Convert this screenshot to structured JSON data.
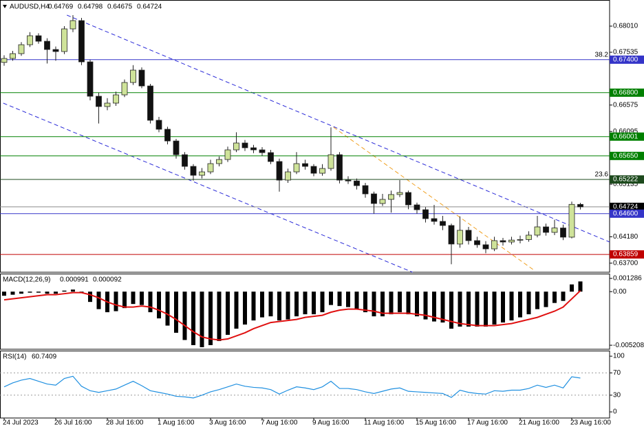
{
  "chart_data": [
    {
      "type": "candlestick",
      "title": "AUDUSD,H4",
      "categories": [
        "24 Jul 2023",
        null,
        null,
        null,
        null,
        null,
        "26 Jul 16:00",
        null,
        null,
        null,
        null,
        null,
        "28 Jul 16:00",
        null,
        null,
        null,
        null,
        null,
        "1 Aug 16:00",
        null,
        null,
        null,
        null,
        null,
        "3 Aug 16:00",
        null,
        null,
        null,
        null,
        null,
        "7 Aug 16:00",
        null,
        null,
        null,
        null,
        null,
        "9 Aug 16:00",
        null,
        null,
        null,
        null,
        null,
        "11 Aug 16:00",
        null,
        null,
        null,
        null,
        null,
        "15 Aug 16:00",
        null,
        null,
        null,
        null,
        null,
        "17 Aug 16:00",
        null,
        null,
        null,
        null,
        null,
        "21 Aug 16:00",
        null,
        null,
        null,
        null,
        null,
        "23 Aug 16:00",
        null
      ],
      "open": [
        0.6735,
        0.67422,
        0.6751,
        0.67672,
        0.67835,
        0.67735,
        0.67585,
        0.67548,
        0.6796,
        0.6811,
        0.6736,
        0.66735,
        0.66548,
        0.6661,
        0.6676,
        0.66985,
        0.6721,
        0.66922,
        0.66298,
        0.66135,
        0.65922,
        0.65672,
        0.6546,
        0.65298,
        0.6536,
        0.6551,
        0.65585,
        0.6576,
        0.65885,
        0.65798,
        0.6576,
        0.6571,
        0.65548,
        0.6521,
        0.6536,
        0.6551,
        0.6546,
        0.65335,
        0.65422,
        0.65672,
        0.6521,
        0.65195,
        0.6511,
        0.6496,
        0.64785,
        0.6486,
        0.64948,
        0.64985,
        0.6476,
        0.64672,
        0.6451,
        0.6446,
        0.64385,
        0.64048,
        0.64298,
        0.6411,
        0.64035,
        0.6396,
        0.6411,
        0.64085,
        0.6412,
        0.6413,
        0.6421,
        0.6436,
        0.6426,
        0.6434,
        0.64173,
        0.64769
      ],
      "high": [
        0.6748,
        0.6756,
        0.6772,
        0.679,
        0.6788,
        0.6779,
        0.6764,
        0.6801,
        0.6821,
        0.6816,
        0.674,
        0.668,
        0.667,
        0.6682,
        0.6704,
        0.673,
        0.6726,
        0.6696,
        0.6636,
        0.6618,
        0.6596,
        0.6572,
        0.655,
        0.6543,
        0.6558,
        0.6564,
        0.6582,
        0.6608,
        0.6594,
        0.6585,
        0.6581,
        0.6576,
        0.656,
        0.6542,
        0.6572,
        0.6558,
        0.655,
        0.655,
        0.6617,
        0.6572,
        0.6528,
        0.6524,
        0.6516,
        0.65,
        0.6496,
        0.6502,
        0.6521,
        0.6502,
        0.648,
        0.6472,
        0.6476,
        0.6456,
        0.6442,
        0.6455,
        0.6436,
        0.6418,
        0.641,
        0.6418,
        0.6416,
        0.6418,
        0.642,
        0.6428,
        0.6456,
        0.6442,
        0.6449,
        0.644,
        0.6482,
        0.64798
      ],
      "low": [
        0.6729,
        0.6738,
        0.6747,
        0.6763,
        0.6769,
        0.6733,
        0.6738,
        0.675,
        0.679,
        0.673,
        0.6666,
        0.6624,
        0.6648,
        0.6656,
        0.6672,
        0.6694,
        0.6688,
        0.6624,
        0.6608,
        0.6586,
        0.656,
        0.654,
        0.652,
        0.6524,
        0.6532,
        0.6546,
        0.6554,
        0.6572,
        0.6574,
        0.657,
        0.6565,
        0.655,
        0.65,
        0.6516,
        0.6532,
        0.654,
        0.6528,
        0.6529,
        0.6538,
        0.6515,
        0.6514,
        0.6504,
        0.6489,
        0.646,
        0.6474,
        0.6462,
        0.649,
        0.6468,
        0.646,
        0.6444,
        0.644,
        0.643,
        0.6368,
        0.6398,
        0.6404,
        0.6398,
        0.6388,
        0.6392,
        0.6402,
        0.6404,
        0.6406,
        0.6409,
        0.6417,
        0.642,
        0.6421,
        0.6412,
        0.6415,
        0.64675
      ],
      "close": [
        0.67422,
        0.6751,
        0.67672,
        0.67835,
        0.67735,
        0.67585,
        0.67548,
        0.6796,
        0.6811,
        0.6736,
        0.66735,
        0.66548,
        0.6661,
        0.6676,
        0.66985,
        0.6721,
        0.66922,
        0.66298,
        0.66135,
        0.65922,
        0.65672,
        0.6546,
        0.65298,
        0.6536,
        0.6551,
        0.65585,
        0.6576,
        0.65885,
        0.65798,
        0.6576,
        0.6571,
        0.65548,
        0.6521,
        0.6536,
        0.6551,
        0.6546,
        0.65335,
        0.65422,
        0.65672,
        0.6521,
        0.65195,
        0.6511,
        0.6496,
        0.64785,
        0.6486,
        0.64948,
        0.64985,
        0.6476,
        0.64672,
        0.6451,
        0.6446,
        0.64385,
        0.64048,
        0.64298,
        0.6411,
        0.64035,
        0.6396,
        0.6411,
        0.64085,
        0.6412,
        0.6413,
        0.6421,
        0.6436,
        0.6426,
        0.6434,
        0.64173,
        0.64769,
        0.64724
      ],
      "bull_color": "#cfe39a",
      "bear_color": "#111111",
      "ylim": [
        0.63535,
        0.68485
      ],
      "yticks": [
        {
          "value": 0.6801,
          "label": "0.68010"
        },
        {
          "value": 0.67535,
          "label": "0.67535"
        },
        {
          "value": 0.66575,
          "label": "0.66575"
        },
        {
          "value": 0.66095,
          "label": "0.66095"
        },
        {
          "value": 0.65135,
          "label": "0.65135"
        },
        {
          "value": 0.6418,
          "label": "0.64180"
        },
        {
          "value": 0.637,
          "label": "0.63700"
        }
      ],
      "levels": [
        {
          "value": 0.674,
          "label": "0.67400",
          "color": "#3434c8",
          "annotation": "38.2"
        },
        {
          "value": 0.668,
          "label": "0.66800",
          "color": "#008000"
        },
        {
          "value": 0.66001,
          "label": "0.66001",
          "color": "#008000"
        },
        {
          "value": 0.6565,
          "label": "0.65650",
          "color": "#008000"
        },
        {
          "value": 0.65222,
          "label": "0.65222",
          "color": "#1d4a1d",
          "annotation": "23.6"
        },
        {
          "value": 0.64724,
          "label": "0.64724",
          "color": "#000000"
        },
        {
          "value": 0.646,
          "label": "0.64600",
          "color": "#3434c8"
        },
        {
          "value": 0.63859,
          "label": "0.63859",
          "color": "#c00000"
        }
      ],
      "trendlines": [
        {
          "color": "#2a2ad8",
          "x": [
            7.3,
            70.4
          ],
          "y": [
            0.6821,
            0.64085
          ]
        },
        {
          "color": "#2a2ad8",
          "x": [
            -0.1,
            47.5
          ],
          "y": [
            0.6661,
            0.63535
          ]
        },
        {
          "color": "#f0a020",
          "x": [
            38.3,
            61.5
          ],
          "y": [
            0.66172,
            0.63585
          ]
        }
      ]
    },
    {
      "type": "macd",
      "title": "MACD(12,26,9)",
      "histogram": {
        "color": "#000000",
        "values": [
          -0.0004,
          -0.0003,
          -0.0002,
          -0.0001,
          -0.0001,
          -0.0002,
          -0.0002,
          0.0001,
          0.0002,
          -0.0001,
          -0.001,
          -0.0017,
          -0.002,
          -0.0019,
          -0.0016,
          -0.0012,
          -0.0013,
          -0.002,
          -0.0026,
          -0.0033,
          -0.004,
          -0.0047,
          -0.0052,
          -0.0054,
          -0.0052,
          -0.0048,
          -0.0042,
          -0.0036,
          -0.0032,
          -0.0028,
          -0.0025,
          -0.0024,
          -0.0028,
          -0.0027,
          -0.0024,
          -0.0022,
          -0.0022,
          -0.002,
          -0.0013,
          -0.0014,
          -0.0015,
          -0.0017,
          -0.002,
          -0.0024,
          -0.0024,
          -0.0022,
          -0.002,
          -0.0022,
          -0.0024,
          -0.0027,
          -0.0029,
          -0.003,
          -0.0036,
          -0.0034,
          -0.0034,
          -0.0034,
          -0.0034,
          -0.0032,
          -0.003,
          -0.0028,
          -0.0025,
          -0.0022,
          -0.0017,
          -0.0015,
          -0.0011,
          -0.0009,
          0.0007,
          0.000991
        ]
      },
      "signal": {
        "color": "#e01010",
        "values": [
          -0.0008,
          -0.0007,
          -0.0006,
          -0.0005,
          -0.0004,
          -0.0003,
          -0.0003,
          -0.0002,
          -0.0001,
          -0.0001,
          -0.0003,
          -0.0006,
          -0.001,
          -0.0013,
          -0.0015,
          -0.0015,
          -0.0014,
          -0.0015,
          -0.0018,
          -0.0022,
          -0.0027,
          -0.0033,
          -0.0039,
          -0.0044,
          -0.0046,
          -0.0047,
          -0.0046,
          -0.0043,
          -0.004,
          -0.0036,
          -0.0033,
          -0.003,
          -0.0029,
          -0.0028,
          -0.0027,
          -0.0025,
          -0.0024,
          -0.0023,
          -0.002,
          -0.0018,
          -0.0017,
          -0.0017,
          -0.0018,
          -0.0019,
          -0.0021,
          -0.0021,
          -0.0021,
          -0.0021,
          -0.0022,
          -0.0023,
          -0.0025,
          -0.0027,
          -0.0029,
          -0.0031,
          -0.0032,
          -0.0033,
          -0.0033,
          -0.0033,
          -0.0032,
          -0.0031,
          -0.0029,
          -0.0027,
          -0.0025,
          -0.0022,
          -0.0019,
          -0.0015,
          -0.0007,
          9.2e-05
        ]
      },
      "ylim": [
        -0.0056,
        0.00175
      ],
      "yticks": [
        0.001286,
        {
          "value": 0,
          "label": "0.00"
        },
        -0.005208
      ]
    },
    {
      "type": "line",
      "title": "RSI(14)",
      "color": "#1e8fe0",
      "values": [
        45,
        52,
        57,
        60,
        55,
        50,
        48,
        60,
        64,
        46,
        38,
        35,
        38,
        41,
        48,
        55,
        47,
        38,
        35,
        32,
        28,
        27,
        25,
        30,
        36,
        40,
        45,
        50,
        46,
        44,
        43,
        40,
        32,
        39,
        45,
        43,
        40,
        45,
        55,
        42,
        42,
        40,
        36,
        33,
        37,
        41,
        43,
        37,
        36,
        35,
        34,
        33,
        26,
        39,
        35,
        33,
        32,
        38,
        37,
        39,
        39,
        42,
        48,
        44,
        48,
        43,
        63,
        60.7409
      ],
      "ylim": [
        -11,
        110
      ],
      "yticks": [
        100,
        70,
        30,
        0
      ],
      "levels": [
        70,
        30
      ]
    }
  ]
}
